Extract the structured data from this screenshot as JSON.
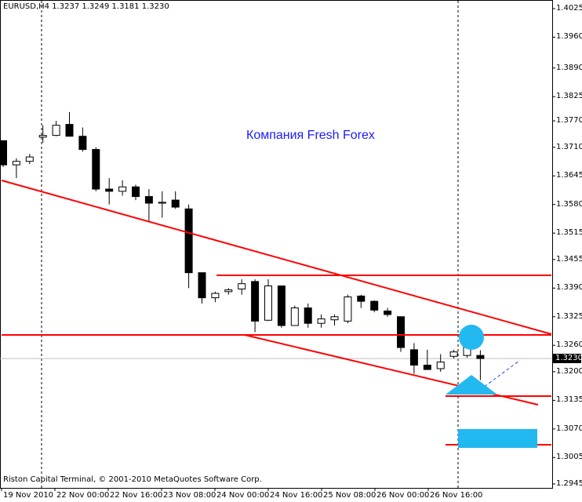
{
  "chart": {
    "symbol_info": "EURUSD,H4  1.3237 1.3249 1.3181 1.3230",
    "watermark": "Компания Fresh Forex",
    "copyright": "Riston Capital Terminal, © 2001-2010 MetaQuotes Software Corp.",
    "current_price": "1.3230",
    "colors": {
      "background": "#ffffff",
      "candle": "#000000",
      "trendline": "#ff0000",
      "marker": "#22b8f0",
      "watermark": "#1a1aff"
    }
  },
  "chart_data": {
    "type": "candlestick",
    "symbol": "EURUSD",
    "timeframe": "H4",
    "y_ticks": [
      "1.4025",
      "1.3960",
      "1.3890",
      "1.3825",
      "1.3770",
      "1.3710",
      "1.3645",
      "1.3580",
      "1.3515",
      "1.3455",
      "1.3390",
      "1.3325",
      "1.3260",
      "1.3200",
      "1.3135",
      "1.3070",
      "1.3005",
      "1.2945"
    ],
    "x_ticks": [
      "19 Nov 2010",
      "22 Nov 00:00",
      "22 Nov 16:00",
      "23 Nov 08:00",
      "24 Nov 00:00",
      "24 Nov 16:00",
      "25 Nov 08:00",
      "26 Nov 00:00",
      "26 Nov 16:00"
    ],
    "ylim": [
      1.2945,
      1.4025
    ],
    "candles": [
      {
        "o": 1.3725,
        "h": 1.3725,
        "l": 1.3665,
        "c": 1.367
      },
      {
        "o": 1.367,
        "h": 1.3685,
        "l": 1.364,
        "c": 1.3678
      },
      {
        "o": 1.3678,
        "h": 1.3695,
        "l": 1.3672,
        "c": 1.3688
      },
      {
        "o": 1.3733,
        "h": 1.376,
        "l": 1.372,
        "c": 1.3737
      },
      {
        "o": 1.3737,
        "h": 1.377,
        "l": 1.3735,
        "c": 1.376
      },
      {
        "o": 1.3762,
        "h": 1.379,
        "l": 1.3735,
        "c": 1.3735
      },
      {
        "o": 1.3735,
        "h": 1.3755,
        "l": 1.37,
        "c": 1.3705
      },
      {
        "o": 1.3705,
        "h": 1.371,
        "l": 1.361,
        "c": 1.3615
      },
      {
        "o": 1.3615,
        "h": 1.364,
        "l": 1.358,
        "c": 1.361
      },
      {
        "o": 1.361,
        "h": 1.3635,
        "l": 1.36,
        "c": 1.362
      },
      {
        "o": 1.362,
        "h": 1.3625,
        "l": 1.359,
        "c": 1.3598
      },
      {
        "o": 1.3598,
        "h": 1.3615,
        "l": 1.354,
        "c": 1.3583
      },
      {
        "o": 1.3583,
        "h": 1.361,
        "l": 1.355,
        "c": 1.3585
      },
      {
        "o": 1.359,
        "h": 1.361,
        "l": 1.357,
        "c": 1.3574
      },
      {
        "o": 1.357,
        "h": 1.358,
        "l": 1.339,
        "c": 1.3425
      },
      {
        "o": 1.3425,
        "h": 1.342,
        "l": 1.3355,
        "c": 1.3368
      },
      {
        "o": 1.3368,
        "h": 1.3382,
        "l": 1.3358,
        "c": 1.3378
      },
      {
        "o": 1.3382,
        "h": 1.339,
        "l": 1.3375,
        "c": 1.3386
      },
      {
        "o": 1.3388,
        "h": 1.341,
        "l": 1.3375,
        "c": 1.34
      },
      {
        "o": 1.3405,
        "h": 1.341,
        "l": 1.329,
        "c": 1.3315
      },
      {
        "o": 1.3317,
        "h": 1.341,
        "l": 1.3315,
        "c": 1.3395
      },
      {
        "o": 1.3395,
        "h": 1.3395,
        "l": 1.33,
        "c": 1.3305
      },
      {
        "o": 1.3305,
        "h": 1.335,
        "l": 1.3305,
        "c": 1.3345
      },
      {
        "o": 1.3345,
        "h": 1.3355,
        "l": 1.33,
        "c": 1.331
      },
      {
        "o": 1.331,
        "h": 1.333,
        "l": 1.33,
        "c": 1.332
      },
      {
        "o": 1.3318,
        "h": 1.333,
        "l": 1.3305,
        "c": 1.3325
      },
      {
        "o": 1.3315,
        "h": 1.3375,
        "l": 1.331,
        "c": 1.337
      },
      {
        "o": 1.3372,
        "h": 1.3375,
        "l": 1.3345,
        "c": 1.336
      },
      {
        "o": 1.336,
        "h": 1.3362,
        "l": 1.3335,
        "c": 1.334
      },
      {
        "o": 1.3338,
        "h": 1.3345,
        "l": 1.3325,
        "c": 1.333
      },
      {
        "o": 1.3325,
        "h": 1.3325,
        "l": 1.3245,
        "c": 1.3255
      },
      {
        "o": 1.325,
        "h": 1.3265,
        "l": 1.3195,
        "c": 1.3215
      },
      {
        "o": 1.3215,
        "h": 1.325,
        "l": 1.3205,
        "c": 1.3205
      },
      {
        "o": 1.3207,
        "h": 1.324,
        "l": 1.32,
        "c": 1.3222
      },
      {
        "o": 1.3235,
        "h": 1.325,
        "l": 1.323,
        "c": 1.3245
      },
      {
        "o": 1.3237,
        "h": 1.329,
        "l": 1.3232,
        "c": 1.3275
      },
      {
        "o": 1.3237,
        "h": 1.3249,
        "l": 1.3181,
        "c": 1.323
      }
    ]
  }
}
